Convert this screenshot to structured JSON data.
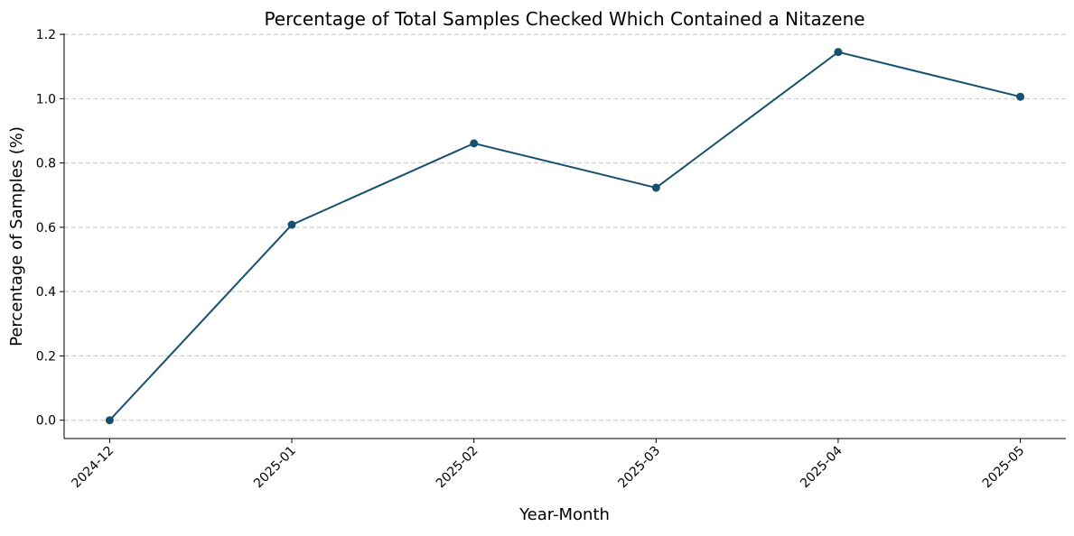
{
  "chart_data": {
    "type": "line",
    "title": "Percentage of Total Samples Checked Which Contained a Nitazene",
    "xlabel": "Year-Month",
    "ylabel": "Percentage of Samples (%)",
    "categories": [
      "2024-12",
      "2025-01",
      "2025-02",
      "2025-03",
      "2025-04",
      "2025-05"
    ],
    "values": [
      0.0,
      0.608,
      0.861,
      0.723,
      1.145,
      1.006
    ],
    "ylim": [
      -0.057,
      1.203
    ],
    "yticks": [
      "0.0",
      "0.2",
      "0.4",
      "0.6",
      "0.8",
      "1.0",
      "1.2"
    ],
    "grid": "y-axis dashed",
    "marker": "circle",
    "line_color": "#17506f",
    "grid_color": "#c4c4c4"
  }
}
